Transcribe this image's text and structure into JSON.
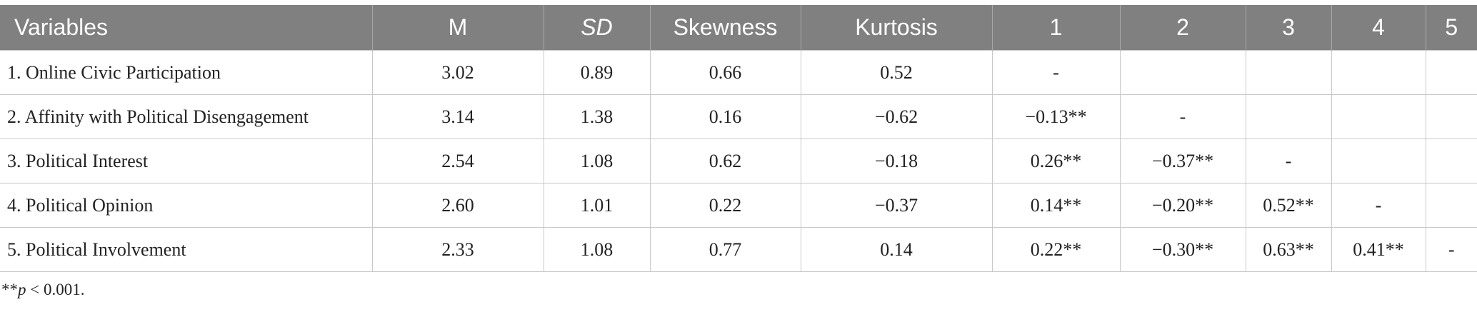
{
  "table": {
    "headers": [
      "Variables",
      "M",
      "SD",
      "Skewness",
      "Kurtosis",
      "1",
      "2",
      "3",
      "4",
      "5"
    ],
    "rows": [
      [
        "1. Online Civic Participation",
        "3.02",
        "0.89",
        "0.66",
        "0.52",
        "-",
        null,
        null,
        null,
        null
      ],
      [
        "2. Affinity with Political Disengagement",
        "3.14",
        "1.38",
        "0.16",
        "−0.62",
        "−0.13**",
        "-",
        null,
        null,
        null
      ],
      [
        "3. Political Interest",
        "2.54",
        "1.08",
        "0.62",
        "−0.18",
        "0.26**",
        "−0.37**",
        "-",
        null,
        null
      ],
      [
        "4. Political Opinion",
        "2.60",
        "1.01",
        "0.22",
        "−0.37",
        "0.14**",
        "−0.20**",
        "0.52**",
        "-",
        null
      ],
      [
        "5. Political Involvement",
        "2.33",
        "1.08",
        "0.77",
        "0.14",
        "0.22**",
        "−0.30**",
        "0.63**",
        "0.41**",
        "-"
      ]
    ]
  },
  "footnote": {
    "prefix": "**",
    "italic": "p",
    "rest": " < 0.001."
  }
}
